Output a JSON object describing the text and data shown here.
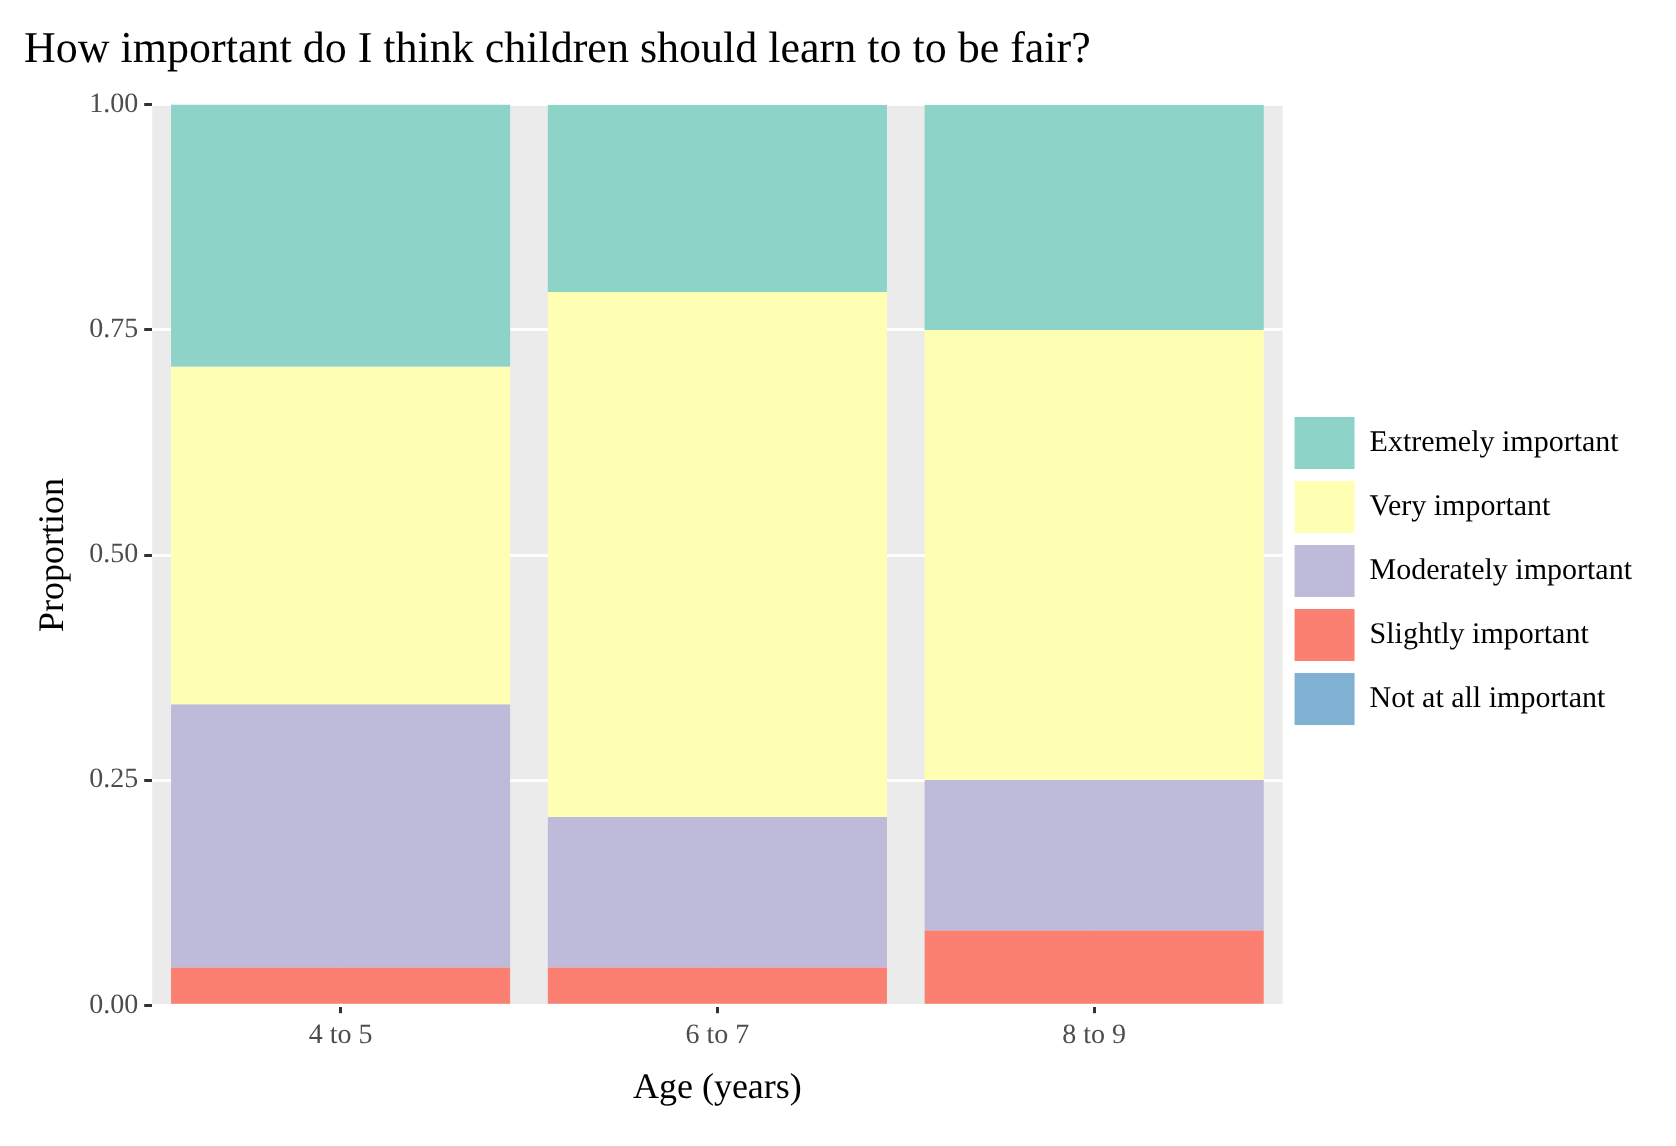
{
  "chart_data": {
    "type": "bar",
    "title": "How important do I think children should learn to to be fair?",
    "xlabel": "Age (years)",
    "ylabel": "Proportion",
    "categories": [
      "4 to 5",
      "6 to 7",
      "8 to 9"
    ],
    "stacked": true,
    "legend": "right",
    "grid": true,
    "ylim": [
      0,
      1
    ],
    "yticks": [
      {
        "value": 0,
        "label": "0.00"
      },
      {
        "value": 0.25,
        "label": "0.25"
      },
      {
        "value": 0.5,
        "label": "0.50"
      },
      {
        "value": 0.75,
        "label": "0.75"
      },
      {
        "value": 1,
        "label": "1.00"
      }
    ],
    "series": [
      {
        "name": "Not at all important",
        "color": "#80b1d3",
        "values": [
          0,
          0,
          0
        ]
      },
      {
        "name": "Slightly important",
        "color": "#fb8072",
        "values": [
          0.042,
          0.042,
          0.083
        ]
      },
      {
        "name": "Moderately important",
        "color": "#bebada",
        "values": [
          0.292,
          0.167,
          0.167
        ]
      },
      {
        "name": "Very important",
        "color": "#ffffb3",
        "values": [
          0.375,
          0.583,
          0.5
        ]
      },
      {
        "name": "Extremely important",
        "color": "#8dd3c7",
        "values": [
          0.292,
          0.208,
          0.25
        ]
      }
    ]
  }
}
